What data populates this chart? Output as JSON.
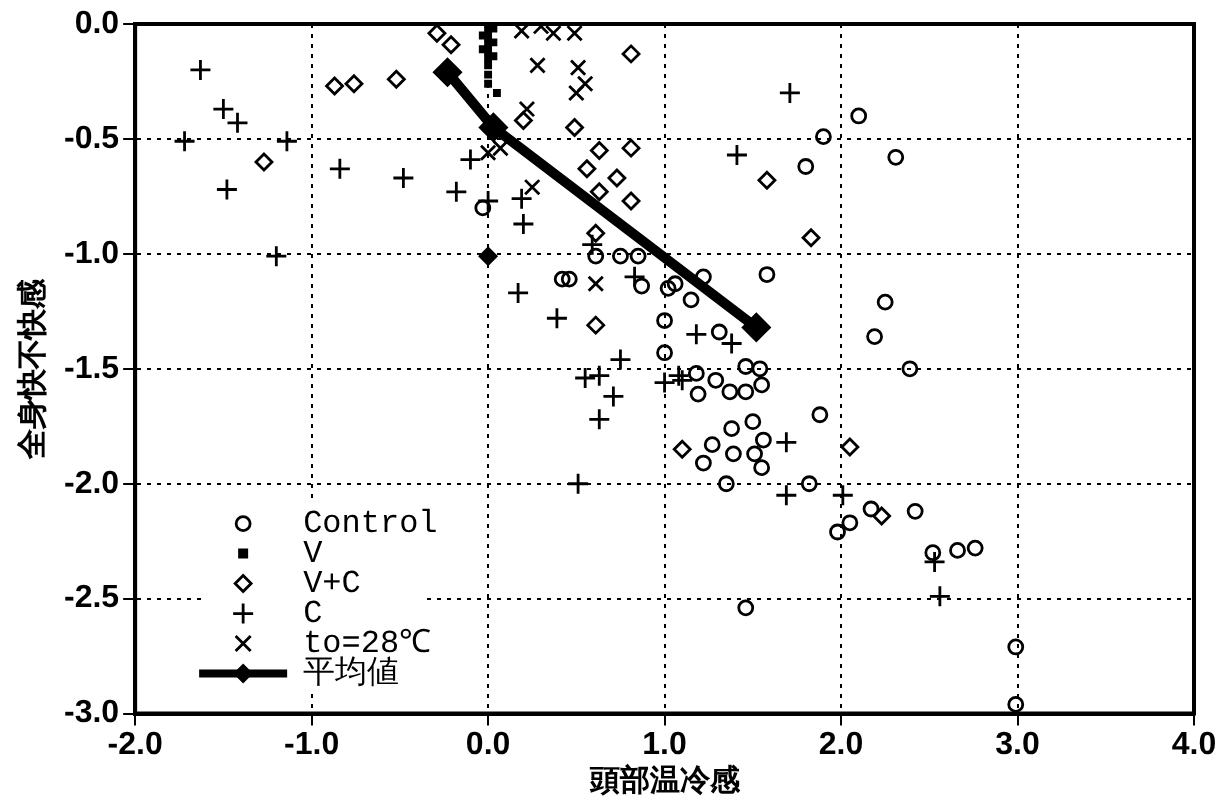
{
  "chart_data": {
    "type": "scatter",
    "xlabel": "頭部温冷感",
    "ylabel": "全身快不快感",
    "xlim": [
      -2,
      4
    ],
    "ylim": [
      -3,
      0
    ],
    "xticks": [
      {
        "value": -2,
        "label": "-2.0"
      },
      {
        "value": -1,
        "label": "-1.0"
      },
      {
        "value": 0,
        "label": "0.0"
      },
      {
        "value": 1,
        "label": "1.0"
      },
      {
        "value": 2,
        "label": "2.0"
      },
      {
        "value": 3,
        "label": "3.0"
      },
      {
        "value": 4,
        "label": "4.0"
      }
    ],
    "yticks": [
      {
        "value": 0,
        "label": "0.0"
      },
      {
        "value": -0.5,
        "label": "-0.5"
      },
      {
        "value": -1,
        "label": "-1.0"
      },
      {
        "value": -1.5,
        "label": "-1.5"
      },
      {
        "value": -2,
        "label": "-2.0"
      },
      {
        "value": -2.5,
        "label": "-2.5"
      },
      {
        "value": -3,
        "label": "-3.0"
      }
    ],
    "grid": true,
    "legend": "bottom left",
    "series": [
      {
        "name": "Control",
        "type": "scatter",
        "marker": "circle",
        "color": "#000000",
        "x": [
          -0.03,
          0.42,
          0.61,
          0.75,
          0.85,
          2.1,
          1.9,
          2.31,
          1.8,
          0.46,
          0.87,
          1.02,
          1.06,
          1.15,
          1.22,
          1.58,
          2.25,
          2.19,
          2.39,
          1.0,
          1.0,
          1.31,
          1.46,
          1.54,
          1.18,
          1.19,
          1.29,
          1.37,
          1.46,
          1.55,
          1.5,
          1.38,
          1.88,
          1.56,
          1.27,
          1.39,
          1.51,
          1.22,
          1.55,
          1.35,
          1.82,
          1.98,
          2.05,
          2.17,
          2.42,
          2.52,
          2.66,
          2.76,
          1.46,
          2.99,
          2.99
        ],
        "values": [
          -0.8,
          -1.11,
          -1.01,
          -1.01,
          -1.01,
          -0.4,
          -0.49,
          -0.58,
          -0.62,
          -1.11,
          -1.14,
          -1.15,
          -1.13,
          -1.2,
          -1.1,
          -1.09,
          -1.21,
          -1.36,
          -1.5,
          -1.29,
          -1.43,
          -1.34,
          -1.49,
          -1.5,
          -1.52,
          -1.61,
          -1.55,
          -1.6,
          -1.6,
          -1.57,
          -1.73,
          -1.76,
          -1.7,
          -1.81,
          -1.83,
          -1.87,
          -1.87,
          -1.91,
          -1.93,
          -2.0,
          -2.0,
          -2.21,
          -2.17,
          -2.11,
          -2.12,
          -2.3,
          -2.29,
          -2.28,
          -2.54,
          -2.71,
          -2.96
        ]
      },
      {
        "name": "V",
        "type": "scatter",
        "marker": "square",
        "color": "#000000",
        "x": [
          0,
          0,
          0,
          0,
          0,
          0,
          0,
          0,
          0,
          0.03,
          0.03,
          0.03,
          -0.03,
          -0.03,
          0.05
        ],
        "values": [
          0,
          -0.03,
          -0.06,
          -0.09,
          -0.12,
          -0.15,
          -0.18,
          -0.22,
          -0.26,
          -0.02,
          -0.08,
          -0.14,
          -0.05,
          -0.11,
          -0.3
        ]
      },
      {
        "name": "V+C",
        "type": "scatter",
        "marker": "diamond",
        "color": "#000000",
        "x": [
          -0.29,
          -0.21,
          -0.87,
          -0.76,
          -0.52,
          -1.27,
          0.2,
          0.49,
          0.63,
          0.56,
          0.73,
          0.63,
          0.81,
          0.61,
          0.61,
          0.81,
          0.81,
          1.58,
          1.83,
          1.1,
          2.05,
          2.23
        ],
        "values": [
          -0.04,
          -0.09,
          -0.27,
          -0.26,
          -0.24,
          -0.6,
          -0.42,
          -0.45,
          -0.55,
          -0.63,
          -0.67,
          -0.73,
          -0.77,
          -0.91,
          -1.31,
          -0.13,
          -0.54,
          -0.68,
          -0.93,
          -1.85,
          -1.84,
          -2.14
        ]
      },
      {
        "name": "C",
        "type": "scatter",
        "marker": "cross",
        "color": "#000000",
        "x": [
          -1.63,
          -1.5,
          -1.42,
          -1.72,
          -1.14,
          -1.48,
          -0.84,
          -0.48,
          -1.2,
          -0.18,
          -0.1,
          0.0,
          0.19,
          0.2,
          0.17,
          0.39,
          0.75,
          0.63,
          0.71,
          0.63,
          0.51,
          1.71,
          1.41,
          0.59,
          0.83,
          1.18,
          1.38,
          1.0,
          1.08,
          1.1,
          1.69,
          1.69,
          2.01,
          2.53,
          2.56,
          0.55
        ],
        "values": [
          -0.2,
          -0.37,
          -0.43,
          -0.51,
          -0.51,
          -0.72,
          -0.63,
          -0.67,
          -1.01,
          -0.73,
          -0.59,
          -0.77,
          -0.76,
          -0.87,
          -1.17,
          -1.28,
          -1.46,
          -1.53,
          -1.62,
          -1.72,
          -2.0,
          -0.3,
          -0.57,
          -0.96,
          -1.1,
          -1.35,
          -1.39,
          -1.56,
          -1.53,
          -1.55,
          -1.82,
          -2.05,
          -2.05,
          -2.34,
          -2.49,
          -1.54
        ]
      },
      {
        "name": "to=28℃",
        "type": "scatter",
        "marker": "x",
        "color": "#000000",
        "x": [
          0.19,
          0.3,
          0.37,
          0.49,
          0.28,
          0.51,
          0.55,
          0.5,
          0.22,
          0.07,
          0.25,
          0.61,
          0.0
        ],
        "values": [
          -0.03,
          -0.01,
          -0.04,
          -0.04,
          -0.18,
          -0.19,
          -0.26,
          -0.3,
          -0.37,
          -0.54,
          -0.71,
          -1.13,
          -0.56
        ]
      },
      {
        "name": "平均値",
        "type": "line",
        "marker": "diamond",
        "color": "#000000",
        "x": [
          -0.23,
          0.03,
          1.52
        ],
        "values": [
          -0.21,
          -0.45,
          -1.32
        ]
      },
      {
        "type": "scatter",
        "marker": "diamond",
        "color": "#000000",
        "x": [
          0.0
        ],
        "values": [
          -1.01
        ]
      }
    ]
  }
}
